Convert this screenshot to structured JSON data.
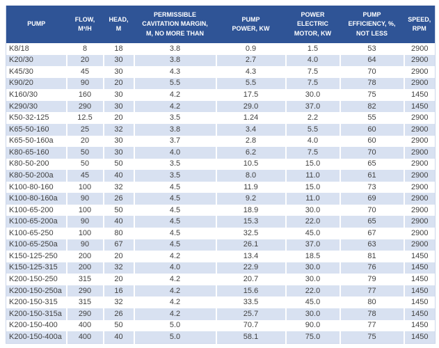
{
  "colors": {
    "header_bg": "#2F5496",
    "header_text": "#FFFFFF",
    "band_bg": "#D8E1F1",
    "cell_text": "#404040",
    "outer_border": "#CCD6EA"
  },
  "table": {
    "columns": [
      {
        "key": "pump",
        "label": "PUMP"
      },
      {
        "key": "flow",
        "label": "FLOW,\nM³/H"
      },
      {
        "key": "head",
        "label": "HEAD,\nM"
      },
      {
        "key": "cavitation",
        "label": "PERMISSIBLE\nCAVITATION MARGIN,\nM, NO MORE THAN"
      },
      {
        "key": "pump_power",
        "label": "PUMP\nPOWER, KW"
      },
      {
        "key": "motor_power",
        "label": "POWER\nELECTRIC\nMOTOR, KW"
      },
      {
        "key": "efficiency",
        "label": "PUMP\nEFFICIENCY, %,\nNOT LESS"
      },
      {
        "key": "speed",
        "label": "SPEED,\nRPM"
      }
    ],
    "rows": [
      [
        "K8/18",
        "8",
        "18",
        "3.8",
        "0.9",
        "1.5",
        "53",
        "2900"
      ],
      [
        "K20/30",
        "20",
        "30",
        "3.8",
        "2.7",
        "4.0",
        "64",
        "2900"
      ],
      [
        "K45/30",
        "45",
        "30",
        "4.3",
        "4.3",
        "7.5",
        "70",
        "2900"
      ],
      [
        "K90/20",
        "90",
        "20",
        "5.5",
        "5.5",
        "7.5",
        "78",
        "2900"
      ],
      [
        "K160/30",
        "160",
        "30",
        "4.2",
        "17.5",
        "30.0",
        "75",
        "1450"
      ],
      [
        "K290/30",
        "290",
        "30",
        "4.2",
        "29.0",
        "37.0",
        "82",
        "1450"
      ],
      [
        "K50-32-125",
        "12.5",
        "20",
        "3.5",
        "1.24",
        "2.2",
        "55",
        "2900"
      ],
      [
        "K65-50-160",
        "25",
        "32",
        "3.8",
        "3.4",
        "5.5",
        "60",
        "2900"
      ],
      [
        "K65-50-160a",
        "20",
        "30",
        "3.7",
        "2.8",
        "4.0",
        "60",
        "2900"
      ],
      [
        "K80-65-160",
        "50",
        "30",
        "4.0",
        "6.2",
        "7.5",
        "70",
        "2900"
      ],
      [
        "K80-50-200",
        "50",
        "50",
        "3.5",
        "10.5",
        "15.0",
        "65",
        "2900"
      ],
      [
        "K80-50-200a",
        "45",
        "40",
        "3.5",
        "8.0",
        "11.0",
        "61",
        "2900"
      ],
      [
        "K100-80-160",
        "100",
        "32",
        "4.5",
        "11.9",
        "15.0",
        "73",
        "2900"
      ],
      [
        "K100-80-160a",
        "90",
        "26",
        "4.5",
        "9.2",
        "11.0",
        "69",
        "2900"
      ],
      [
        "K100-65-200",
        "100",
        "50",
        "4.5",
        "18.9",
        "30.0",
        "70",
        "2900"
      ],
      [
        "K100-65-200a",
        "90",
        "40",
        "4.5",
        "15.3",
        "22.0",
        "65",
        "2900"
      ],
      [
        "K100-65-250",
        "100",
        "80",
        "4.5",
        "32.5",
        "45.0",
        "67",
        "2900"
      ],
      [
        "K100-65-250a",
        "90",
        "67",
        "4.5",
        "26.1",
        "37.0",
        "63",
        "2900"
      ],
      [
        "K150-125-250",
        "200",
        "20",
        "4.2",
        "13.4",
        "18.5",
        "81",
        "1450"
      ],
      [
        "K150-125-315",
        "200",
        "32",
        "4.0",
        "22.9",
        "30.0",
        "76",
        "1450"
      ],
      [
        "K200-150-250",
        "315",
        "20",
        "4.2",
        "20.7",
        "30.0",
        "79",
        "1450"
      ],
      [
        "K200-150-250a",
        "290",
        "16",
        "4.2",
        "15.6",
        "22.0",
        "77",
        "1450"
      ],
      [
        "K200-150-315",
        "315",
        "32",
        "4.2",
        "33.5",
        "45.0",
        "80",
        "1450"
      ],
      [
        "K200-150-315a",
        "290",
        "26",
        "4.2",
        "25.7",
        "30.0",
        "78",
        "1450"
      ],
      [
        "K200-150-400",
        "400",
        "50",
        "5.0",
        "70.7",
        "90.0",
        "77",
        "1450"
      ],
      [
        "K200-150-400a",
        "400",
        "40",
        "5.0",
        "58.1",
        "75.0",
        "75",
        "1450"
      ]
    ]
  }
}
